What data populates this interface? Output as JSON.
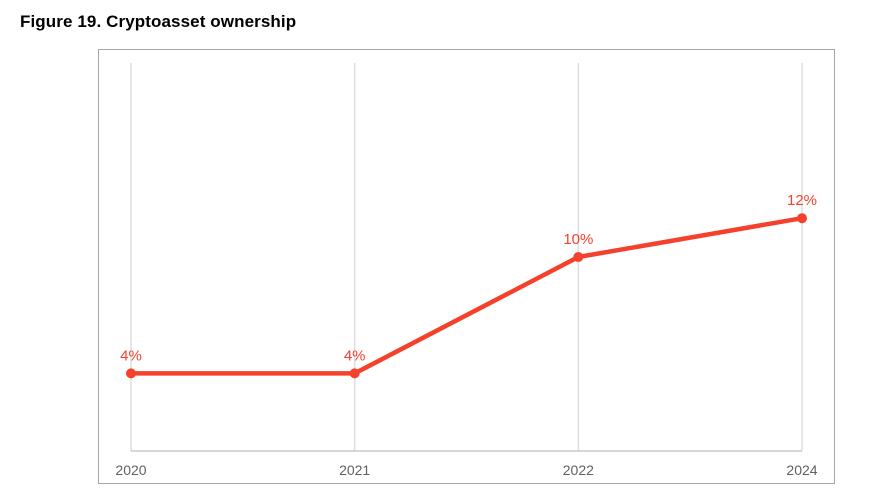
{
  "figure": {
    "title": "Figure 19. Cryptoasset ownership"
  },
  "chart_data": {
    "type": "line",
    "title": "Figure 19. Cryptoasset ownership",
    "categories": [
      "2020",
      "2021",
      "2022",
      "2024"
    ],
    "series": [
      {
        "name": "Cryptoasset ownership",
        "values": [
          4,
          4,
          10,
          12
        ]
      }
    ],
    "point_labels": [
      "4%",
      "4%",
      "10%",
      "12%"
    ],
    "xlabel": "",
    "ylabel": "",
    "ylim": [
      0,
      20
    ],
    "grid": "vertical",
    "legend_position": "none",
    "colors": {
      "line": "#f5402c",
      "point": "#f5402c",
      "data_label": "#f5402c",
      "gridline": "#dedede",
      "axis_line": "#c8c8c8",
      "frame_border": "#a6a6a6",
      "tick_label": "#616161",
      "title": "#000000",
      "background": "#ffffff"
    }
  }
}
